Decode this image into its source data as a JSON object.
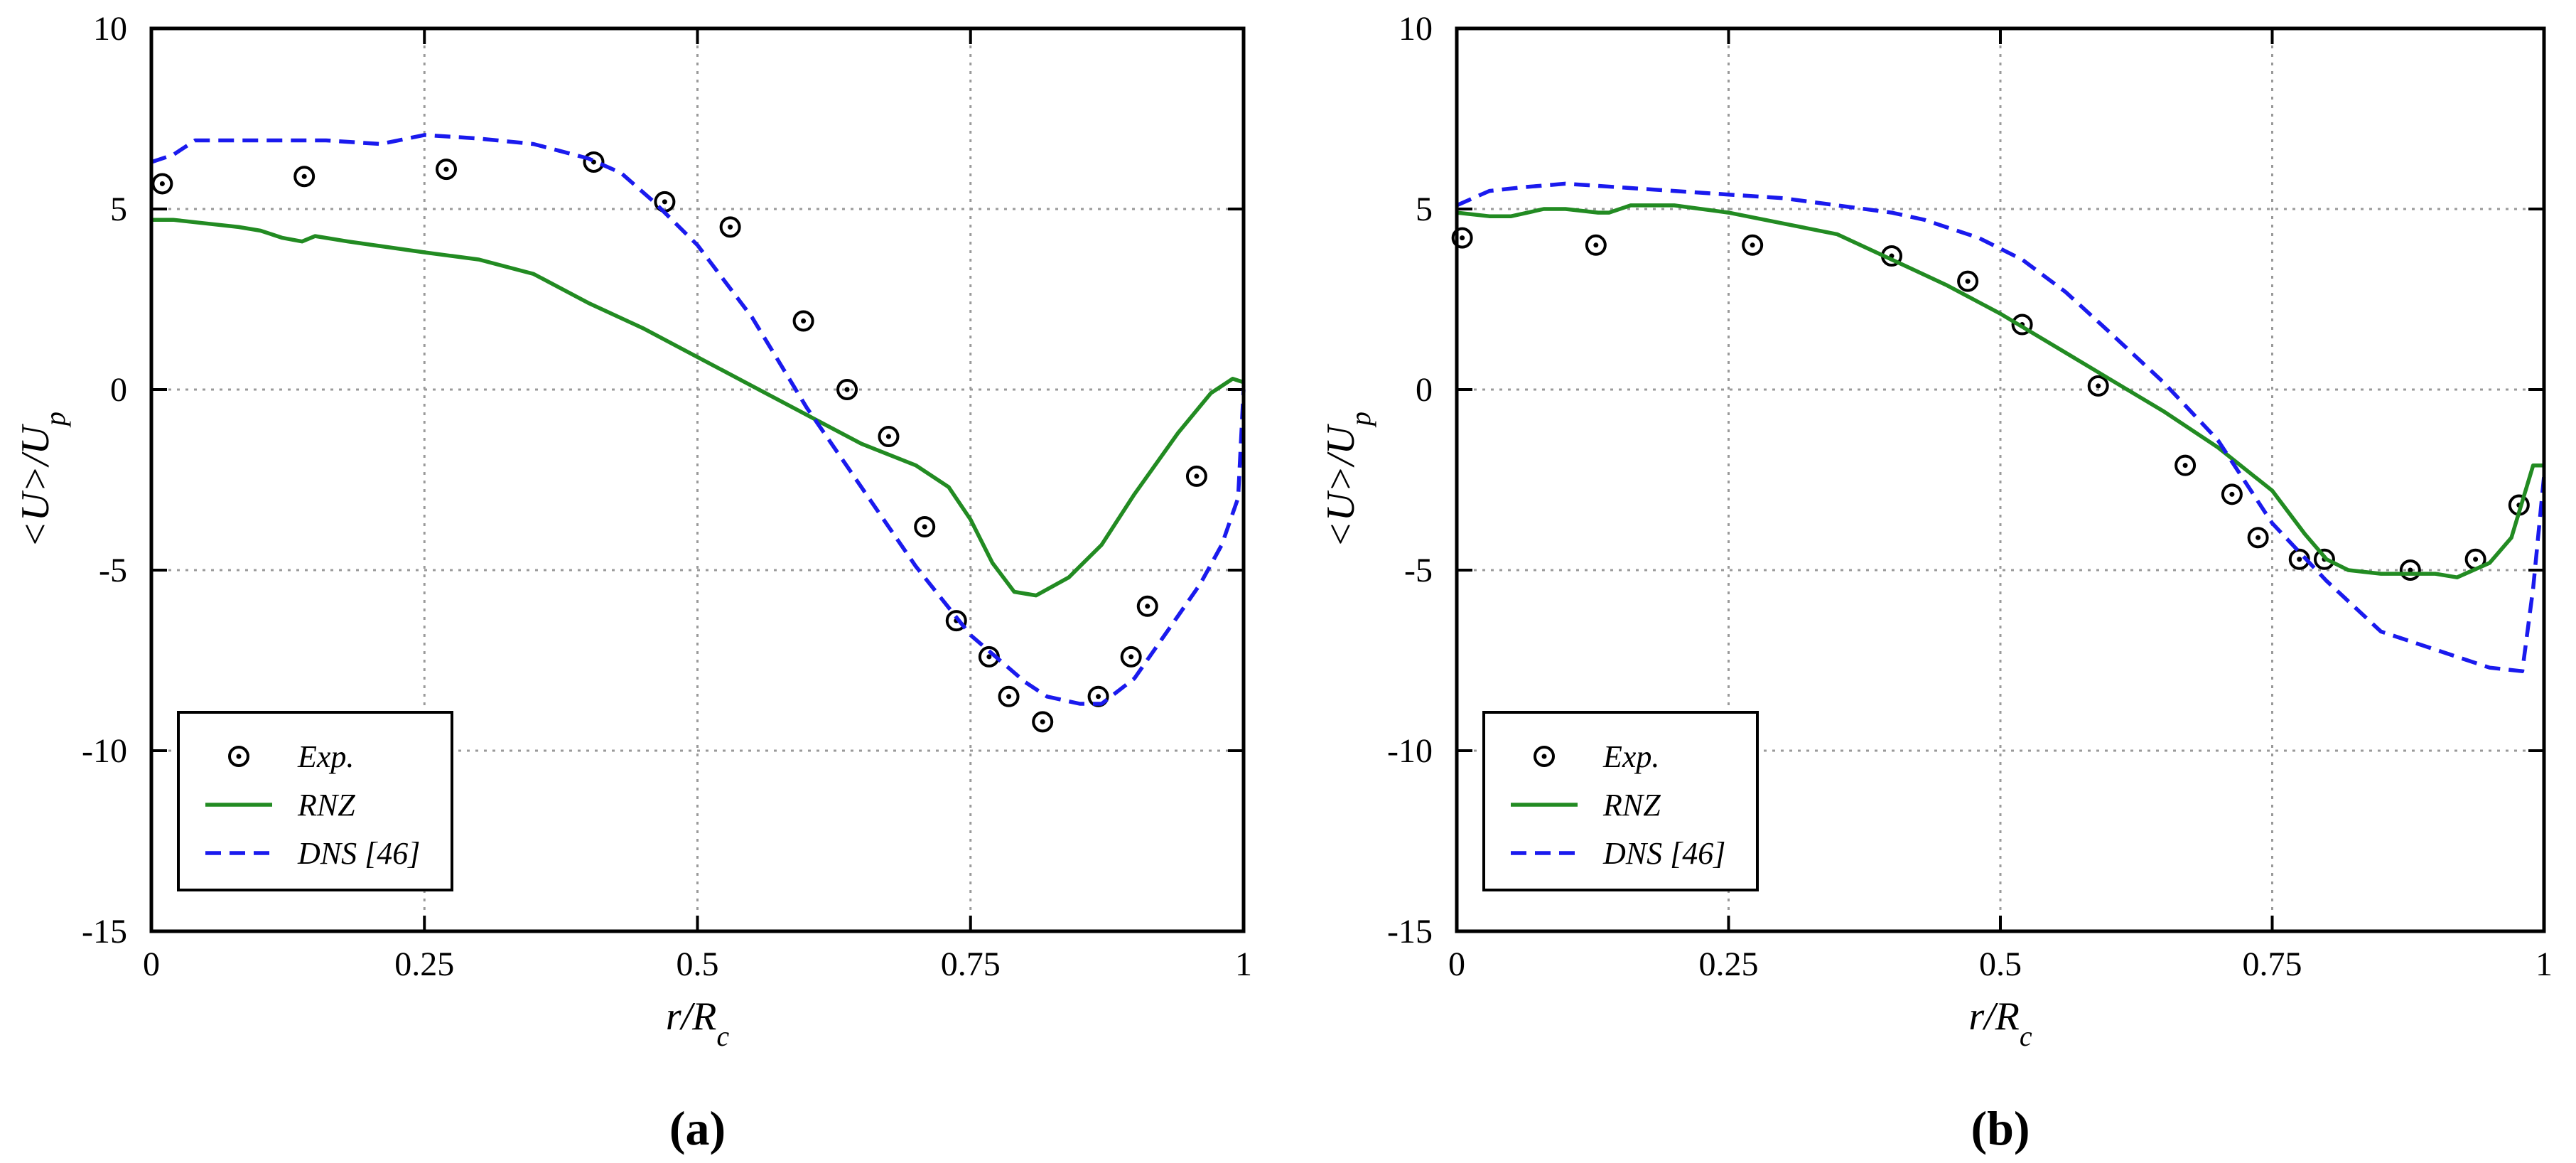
{
  "chart_data": [
    {
      "id": "a",
      "type": "line",
      "panel_label": "(a)",
      "xlabel": "r/R",
      "xlabel_sub": "c",
      "ylabel": "<U>/U",
      "ylabel_sub": "p",
      "xlim": [
        0,
        1
      ],
      "ylim": [
        -15,
        10
      ],
      "xticks": [
        0,
        0.25,
        0.5,
        0.75,
        1
      ],
      "xtick_labels": [
        "0",
        "0.25",
        "0.5",
        "0.75",
        "1"
      ],
      "yticks": [
        -15,
        -10,
        -5,
        0,
        5,
        10
      ],
      "ytick_labels": [
        "-15",
        "-10",
        "-5",
        "0",
        "5",
        "10"
      ],
      "grid": true,
      "legend_position": "bottom-left",
      "series": [
        {
          "name": "Exp.",
          "style": "circle-marker",
          "color": "#000000",
          "x": [
            0.01,
            0.14,
            0.27,
            0.405,
            0.47,
            0.53,
            0.597,
            0.637,
            0.675,
            0.708,
            0.737,
            0.767,
            0.785,
            0.816,
            0.867,
            0.897,
            0.912,
            0.957
          ],
          "y": [
            5.7,
            5.9,
            6.1,
            6.3,
            5.2,
            4.5,
            1.9,
            0.0,
            -1.3,
            -3.8,
            -6.4,
            -7.4,
            -8.5,
            -9.2,
            -8.5,
            -7.4,
            -6.0,
            -2.4
          ]
        },
        {
          "name": "RNZ",
          "style": "solid",
          "color": "#228b22",
          "x": [
            0.0,
            0.02,
            0.05,
            0.08,
            0.1,
            0.12,
            0.138,
            0.15,
            0.18,
            0.25,
            0.3,
            0.35,
            0.4,
            0.45,
            0.5,
            0.55,
            0.6,
            0.65,
            0.7,
            0.73,
            0.75,
            0.77,
            0.79,
            0.81,
            0.84,
            0.87,
            0.9,
            0.94,
            0.97,
            0.99,
            1.0
          ],
          "y": [
            4.7,
            4.7,
            4.6,
            4.5,
            4.4,
            4.2,
            4.1,
            4.25,
            4.1,
            3.8,
            3.6,
            3.2,
            2.4,
            1.7,
            0.9,
            0.1,
            -0.7,
            -1.5,
            -2.1,
            -2.7,
            -3.6,
            -4.8,
            -5.6,
            -5.7,
            -5.2,
            -4.3,
            -2.9,
            -1.2,
            -0.1,
            0.3,
            0.2
          ]
        },
        {
          "name": "DNS [46]",
          "style": "dashed",
          "color": "#1a1aee",
          "x": [
            0.0,
            0.02,
            0.04,
            0.08,
            0.12,
            0.16,
            0.21,
            0.25,
            0.3,
            0.35,
            0.4,
            0.43,
            0.46,
            0.5,
            0.55,
            0.6,
            0.65,
            0.7,
            0.75,
            0.8,
            0.82,
            0.85,
            0.87,
            0.9,
            0.93,
            0.96,
            0.98,
            0.995,
            1.0
          ],
          "y": [
            6.3,
            6.5,
            6.9,
            6.9,
            6.9,
            6.9,
            6.8,
            7.05,
            6.95,
            6.8,
            6.4,
            6.0,
            5.2,
            4.0,
            2.0,
            -0.5,
            -2.7,
            -4.9,
            -6.8,
            -8.1,
            -8.5,
            -8.7,
            -8.7,
            -8.0,
            -6.7,
            -5.4,
            -4.3,
            -3.0,
            0.0
          ]
        }
      ]
    },
    {
      "id": "b",
      "type": "line",
      "panel_label": "(b)",
      "xlabel": "r/R",
      "xlabel_sub": "c",
      "ylabel": "<U>/U",
      "ylabel_sub": "p",
      "xlim": [
        0,
        1
      ],
      "ylim": [
        -15,
        10
      ],
      "xticks": [
        0,
        0.25,
        0.5,
        0.75,
        1
      ],
      "xtick_labels": [
        "0",
        "0.25",
        "0.5",
        "0.75",
        "1"
      ],
      "yticks": [
        -15,
        -10,
        -5,
        0,
        5,
        10
      ],
      "ytick_labels": [
        "-15",
        "-10",
        "-5",
        "0",
        "5",
        "10"
      ],
      "grid": true,
      "legend_position": "bottom-left",
      "series": [
        {
          "name": "Exp.",
          "style": "circle-marker",
          "color": "#000000",
          "x": [
            0.005,
            0.128,
            0.272,
            0.4,
            0.47,
            0.52,
            0.59,
            0.67,
            0.713,
            0.737,
            0.775,
            0.798,
            0.877,
            0.937,
            0.977
          ],
          "y": [
            4.2,
            4.0,
            4.0,
            3.7,
            3.0,
            1.8,
            0.1,
            -2.1,
            -2.9,
            -4.1,
            -4.7,
            -4.7,
            -5.0,
            -4.7,
            -3.2
          ]
        },
        {
          "name": "RNZ",
          "style": "solid",
          "color": "#228b22",
          "x": [
            0.0,
            0.03,
            0.05,
            0.08,
            0.1,
            0.13,
            0.14,
            0.16,
            0.2,
            0.25,
            0.3,
            0.35,
            0.4,
            0.45,
            0.5,
            0.55,
            0.6,
            0.65,
            0.7,
            0.75,
            0.78,
            0.8,
            0.82,
            0.85,
            0.9,
            0.92,
            0.95,
            0.97,
            0.99,
            1.0
          ],
          "y": [
            4.9,
            4.8,
            4.8,
            5.0,
            5.0,
            4.9,
            4.9,
            5.1,
            5.1,
            4.9,
            4.6,
            4.3,
            3.6,
            2.9,
            2.1,
            1.2,
            0.3,
            -0.6,
            -1.6,
            -2.8,
            -4.0,
            -4.7,
            -5.0,
            -5.1,
            -5.1,
            -5.2,
            -4.8,
            -4.1,
            -2.1,
            -2.1
          ]
        },
        {
          "name": "DNS [46]",
          "style": "dashed",
          "color": "#1a1aee",
          "x": [
            0.0,
            0.03,
            0.06,
            0.1,
            0.15,
            0.2,
            0.25,
            0.3,
            0.35,
            0.4,
            0.43,
            0.48,
            0.52,
            0.56,
            0.6,
            0.65,
            0.7,
            0.75,
            0.8,
            0.85,
            0.9,
            0.95,
            0.98,
            0.99,
            1.0
          ],
          "y": [
            5.1,
            5.5,
            5.6,
            5.7,
            5.6,
            5.5,
            5.4,
            5.3,
            5.1,
            4.9,
            4.7,
            4.2,
            3.6,
            2.7,
            1.6,
            0.2,
            -1.4,
            -3.7,
            -5.3,
            -6.7,
            -7.2,
            -7.7,
            -7.8,
            -5.5,
            -2.4
          ]
        }
      ]
    }
  ]
}
